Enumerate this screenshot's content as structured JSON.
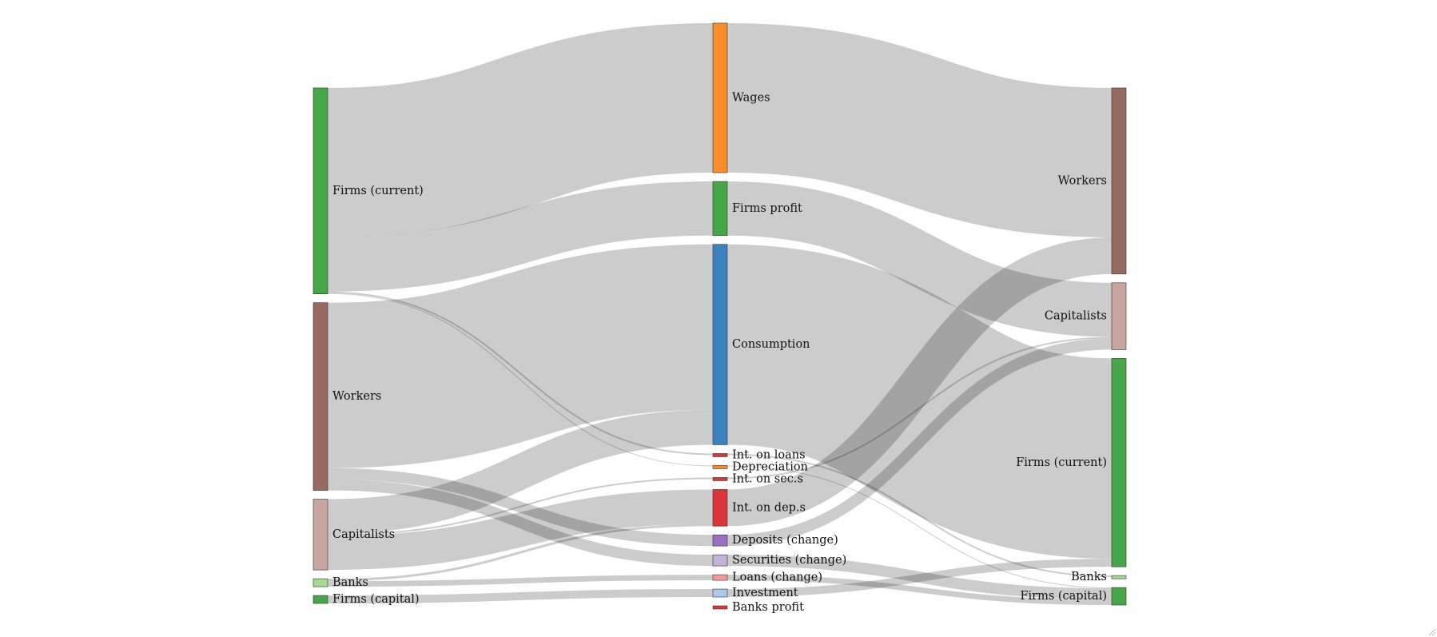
{
  "chart_data": {
    "type": "sankey",
    "title": "",
    "columns": [
      "sources",
      "flows",
      "destinations"
    ],
    "nodes": [
      {
        "id": "src_firms_current",
        "label": "Firms (current)",
        "column": 0,
        "color": "#45a748"
      },
      {
        "id": "src_workers",
        "label": "Workers",
        "column": 0,
        "color": "#976a62"
      },
      {
        "id": "src_capitalists",
        "label": "Capitalists",
        "column": 0,
        "color": "#c9a59f"
      },
      {
        "id": "src_banks",
        "label": "Banks",
        "column": 0,
        "color": "#a4db91"
      },
      {
        "id": "src_firms_capital",
        "label": "Firms (capital)",
        "column": 0,
        "color": "#45a748"
      },
      {
        "id": "wages",
        "label": "Wages",
        "column": 1,
        "color": "#fb8c2c"
      },
      {
        "id": "firms_profit",
        "label": "Firms profit",
        "column": 1,
        "color": "#45a748"
      },
      {
        "id": "consumption",
        "label": "Consumption",
        "column": 1,
        "color": "#3a83bf"
      },
      {
        "id": "int_loans",
        "label": "Int. on loans",
        "column": 1,
        "color": "#d9353a"
      },
      {
        "id": "depreciation",
        "label": "Depreciation",
        "column": 1,
        "color": "#fb8c2c"
      },
      {
        "id": "int_secs",
        "label": "Int. on sec.s",
        "column": 1,
        "color": "#d9353a"
      },
      {
        "id": "int_deps",
        "label": "Int. on dep.s",
        "column": 1,
        "color": "#d9353a"
      },
      {
        "id": "deposits_change",
        "label": "Deposits (change)",
        "column": 1,
        "color": "#9a71c1"
      },
      {
        "id": "securities_change",
        "label": "Securities (change)",
        "column": 1,
        "color": "#c5b2d9"
      },
      {
        "id": "loans_change",
        "label": "Loans (change)",
        "column": 1,
        "color": "#f7999a"
      },
      {
        "id": "investment",
        "label": "Investment",
        "column": 1,
        "color": "#aec8e8"
      },
      {
        "id": "banks_profit",
        "label": "Banks profit",
        "column": 1,
        "color": "#d9353a"
      },
      {
        "id": "dst_workers",
        "label": "Workers",
        "column": 2,
        "color": "#976a62"
      },
      {
        "id": "dst_capitalists",
        "label": "Capitalists",
        "column": 2,
        "color": "#c9a59f"
      },
      {
        "id": "dst_firms_current",
        "label": "Firms (current)",
        "column": 2,
        "color": "#45a748"
      },
      {
        "id": "dst_banks",
        "label": "Banks",
        "column": 2,
        "color": "#a4db91"
      },
      {
        "id": "dst_firms_capital",
        "label": "Firms (capital)",
        "column": 2,
        "color": "#45a748"
      }
    ],
    "links": [
      {
        "source": "src_firms_current",
        "target": "wages",
        "value": 188
      },
      {
        "source": "src_firms_current",
        "target": "firms_profit",
        "value": 68
      },
      {
        "source": "src_firms_current",
        "target": "int_loans",
        "value": 2
      },
      {
        "source": "src_firms_current",
        "target": "depreciation",
        "value": 1
      },
      {
        "source": "src_workers",
        "target": "consumption",
        "value": 208
      },
      {
        "source": "src_workers",
        "target": "deposits_change",
        "value": 14
      },
      {
        "source": "src_workers",
        "target": "securities_change",
        "value": 14
      },
      {
        "source": "src_capitalists",
        "target": "consumption",
        "value": 44
      },
      {
        "source": "src_capitalists",
        "target": "int_secs",
        "value": 2
      },
      {
        "source": "src_capitalists",
        "target": "int_deps",
        "value": 43
      },
      {
        "source": "src_banks",
        "target": "int_deps",
        "value": 3
      },
      {
        "source": "src_banks",
        "target": "loans_change",
        "value": 7
      },
      {
        "source": "src_firms_capital",
        "target": "investment",
        "value": 10
      },
      {
        "source": "wages",
        "target": "dst_workers",
        "value": 188
      },
      {
        "source": "firms_profit",
        "target": "dst_capitalists",
        "value": 68
      },
      {
        "source": "consumption",
        "target": "dst_firms_current",
        "value": 252
      },
      {
        "source": "int_loans",
        "target": "dst_banks",
        "value": 2
      },
      {
        "source": "depreciation",
        "target": "dst_firms_capital",
        "value": 1
      },
      {
        "source": "int_secs",
        "target": "dst_capitalists",
        "value": 2
      },
      {
        "source": "int_deps",
        "target": "dst_workers",
        "value": 46
      },
      {
        "source": "deposits_change",
        "target": "dst_capitalists",
        "value": 14
      },
      {
        "source": "securities_change",
        "target": "dst_firms_capital",
        "value": 14
      },
      {
        "source": "loans_change",
        "target": "dst_firms_capital",
        "value": 7
      },
      {
        "source": "investment",
        "target": "dst_firms_current",
        "value": 10
      }
    ]
  }
}
